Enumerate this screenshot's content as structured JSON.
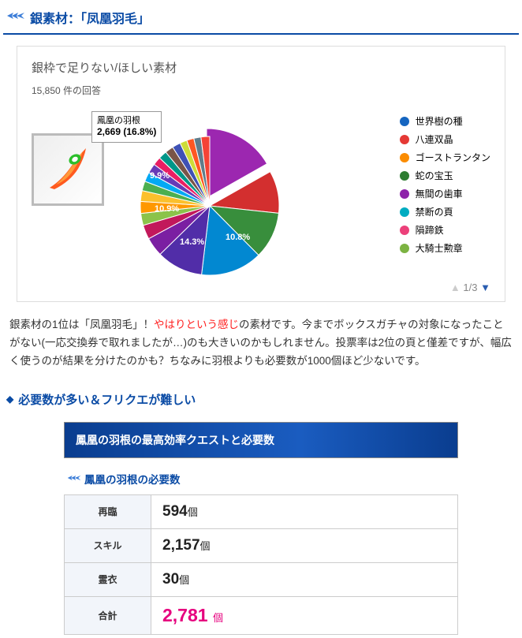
{
  "heading": "銀素材：「凤凰羽毛」",
  "chart": {
    "title": "銀枠で足りない/ほしい素材",
    "count_text": "15,850 件の回答",
    "callout_name": "鳳凰の羽根",
    "callout_value": "2,669 (16.8%)",
    "slice_labels": {
      "a": "9.9%",
      "b": "10.9%",
      "c": "14.3%",
      "d": "10.8%"
    },
    "slices": [
      {
        "color": "#9c27b0",
        "deg": 60.5
      },
      {
        "color": "#d32f2f",
        "deg": 35.6
      },
      {
        "color": "#388e3c",
        "deg": 39.2
      },
      {
        "color": "#0288d1",
        "deg": 51.5
      },
      {
        "color": "#512da8",
        "deg": 38.9
      },
      {
        "color": "#7b1fa2",
        "deg": 16
      },
      {
        "color": "#c2185b",
        "deg": 12
      },
      {
        "color": "#8bc34a",
        "deg": 10
      },
      {
        "color": "#ff9800",
        "deg": 10
      },
      {
        "color": "#fbc02d",
        "deg": 9
      },
      {
        "color": "#4caf50",
        "deg": 8
      },
      {
        "color": "#03a9f4",
        "deg": 8
      },
      {
        "color": "#673ab7",
        "deg": 8
      },
      {
        "color": "#e91e63",
        "deg": 7
      },
      {
        "color": "#009688",
        "deg": 7
      },
      {
        "color": "#795548",
        "deg": 7
      },
      {
        "color": "#3f51b5",
        "deg": 7
      },
      {
        "color": "#cddc39",
        "deg": 6
      },
      {
        "color": "#ff5722",
        "deg": 6
      },
      {
        "color": "#607d8b",
        "deg": 6
      },
      {
        "color": "#f44336",
        "deg": 7.3
      }
    ],
    "legend": [
      {
        "color": "#1565c0",
        "label": "世界樹の種"
      },
      {
        "color": "#e53935",
        "label": "八連双晶"
      },
      {
        "color": "#fb8c00",
        "label": "ゴーストランタン"
      },
      {
        "color": "#2e7d32",
        "label": "蛇の宝玉"
      },
      {
        "color": "#8e24aa",
        "label": "無間の歯車"
      },
      {
        "color": "#00acc1",
        "label": "禁断の頁"
      },
      {
        "color": "#ec407a",
        "label": "隕蹄鉄"
      },
      {
        "color": "#7cb342",
        "label": "大騎士勲章"
      }
    ],
    "pager_text": "1/3"
  },
  "body": {
    "p1a": "銀素材の1位は「凤凰羽毛」！",
    "p1red": "やはりという感じ",
    "p1b": "の素材です。今までボックスガチャの対象になったことがない(一応交換券で取れましたが…)のも大きいのかもしれません。投票率は2位の頁と僅差ですが、幅広く使うのが結果を分けたのかも？ちなみに羽根よりも必要数が1000個ほど少ないです。"
  },
  "subheading": "必要数が多い＆フリクエが難しい",
  "table": {
    "banner": "鳳凰の羽根の最高効率クエストと必要数",
    "subtitle": "鳳凰の羽根の必要数",
    "rows": [
      {
        "label": "再臨",
        "value": "594",
        "unit": "個"
      },
      {
        "label": "スキル",
        "value": "2,157",
        "unit": "個"
      },
      {
        "label": "霊衣",
        "value": "30",
        "unit": "個"
      },
      {
        "label": "合計",
        "value": "2,781",
        "unit": "個",
        "total": true
      }
    ]
  }
}
